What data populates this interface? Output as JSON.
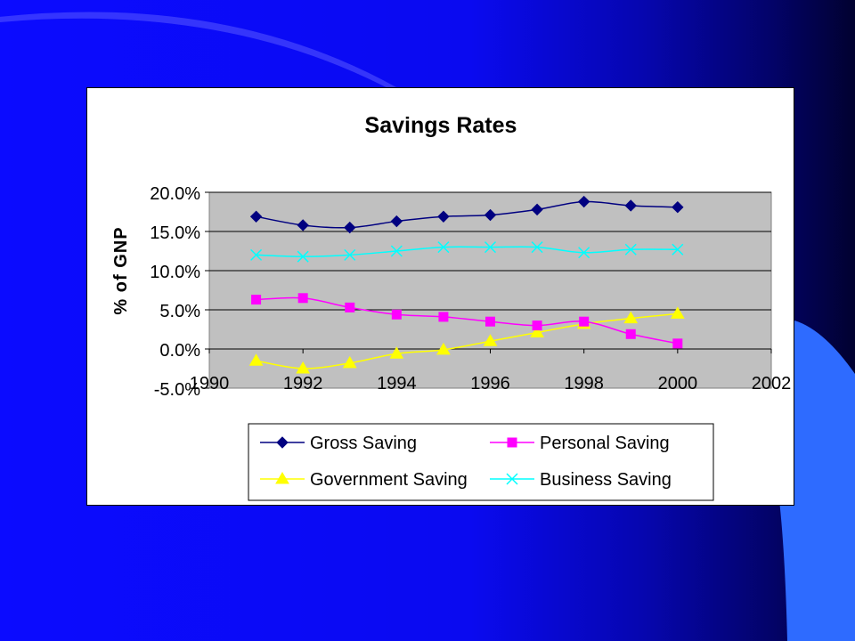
{
  "slide": {
    "background_colors": [
      "#0b0bff",
      "#010130"
    ],
    "accent_shape_color": "#2e6bff"
  },
  "chart_data": {
    "type": "line",
    "title": "Savings Rates",
    "xlabel": "",
    "ylabel": "% of GNP",
    "xlim": [
      1990,
      2002
    ],
    "ylim": [
      -5.0,
      20.0
    ],
    "x_ticks": [
      "1990",
      "1992",
      "1994",
      "1996",
      "1998",
      "2000",
      "2002"
    ],
    "y_ticks": [
      "-5.0%",
      "0.0%",
      "5.0%",
      "10.0%",
      "15.0%",
      "20.0%"
    ],
    "plot_background": "#c0c0c0",
    "grid": true,
    "legend_position": "bottom",
    "x": [
      1991,
      1992,
      1993,
      1994,
      1995,
      1996,
      1997,
      1998,
      1999,
      2000
    ],
    "series": [
      {
        "name": "Gross Saving",
        "color": "#000080",
        "marker": "diamond",
        "values": [
          16.9,
          15.8,
          15.5,
          16.3,
          16.9,
          17.1,
          17.8,
          18.8,
          18.3,
          18.1
        ]
      },
      {
        "name": "Personal Saving",
        "color": "#ff00ff",
        "marker": "square",
        "values": [
          6.3,
          6.5,
          5.3,
          4.4,
          4.1,
          3.5,
          3.0,
          3.5,
          1.9,
          0.7
        ]
      },
      {
        "name": "Government Saving",
        "color": "#ffff00",
        "marker": "triangle",
        "values": [
          -1.5,
          -2.5,
          -1.8,
          -0.6,
          -0.1,
          1.0,
          2.1,
          3.2,
          3.9,
          4.5
        ]
      },
      {
        "name": "Business Saving",
        "color": "#00ffff",
        "marker": "x",
        "values": [
          12.0,
          11.8,
          12.0,
          12.5,
          13.0,
          13.0,
          13.0,
          12.3,
          12.7,
          12.7
        ]
      }
    ]
  }
}
